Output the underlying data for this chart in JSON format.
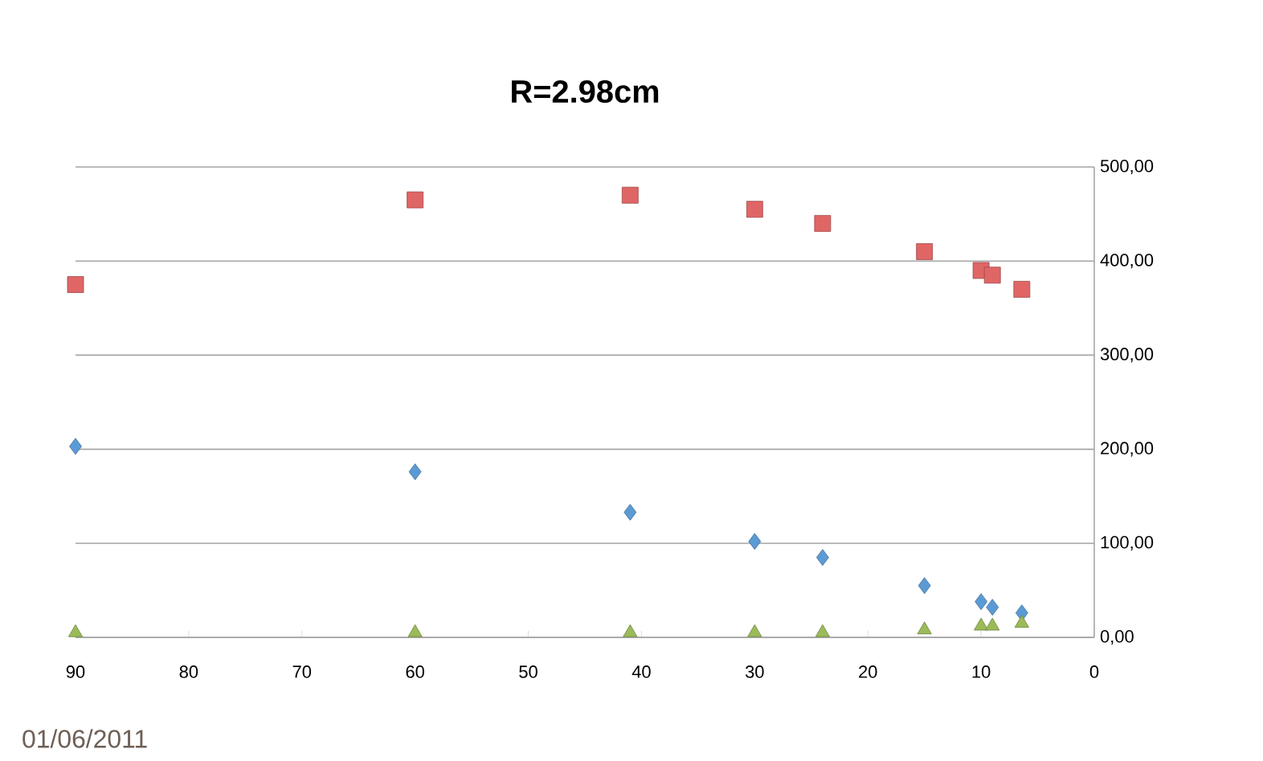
{
  "chart_data": {
    "type": "scatter",
    "title": "R=2.98cm",
    "x": [
      90,
      60,
      41,
      30,
      24,
      15,
      10,
      9,
      6.4
    ],
    "series": [
      {
        "color": "#e06666",
        "marker": "square",
        "values": [
          375,
          465,
          470,
          455,
          440,
          410,
          390,
          385,
          370
        ]
      },
      {
        "color": "#5b9bd5",
        "marker": "diamond",
        "values": [
          203,
          176,
          133,
          102,
          85,
          55,
          38,
          32,
          26
        ]
      },
      {
        "color": "#9bbb59",
        "marker": "triangle",
        "values": [
          5,
          5,
          5,
          5,
          5,
          8,
          12,
          12,
          15
        ]
      }
    ],
    "xlim": [
      90,
      0
    ],
    "xticks": [
      90,
      80,
      70,
      60,
      50,
      40,
      30,
      20,
      10,
      0
    ],
    "ylim": [
      0,
      500
    ],
    "yticks": [
      {
        "value": 0,
        "label": "0,00"
      },
      {
        "value": 100,
        "label": "100,00"
      },
      {
        "value": 200,
        "label": "200,00"
      },
      {
        "value": 300,
        "label": "300,00"
      },
      {
        "value": 400,
        "label": "400,00"
      },
      {
        "value": 500,
        "label": "500,00"
      }
    ],
    "grid": "y",
    "annotations": [
      "01/06/2011"
    ]
  }
}
